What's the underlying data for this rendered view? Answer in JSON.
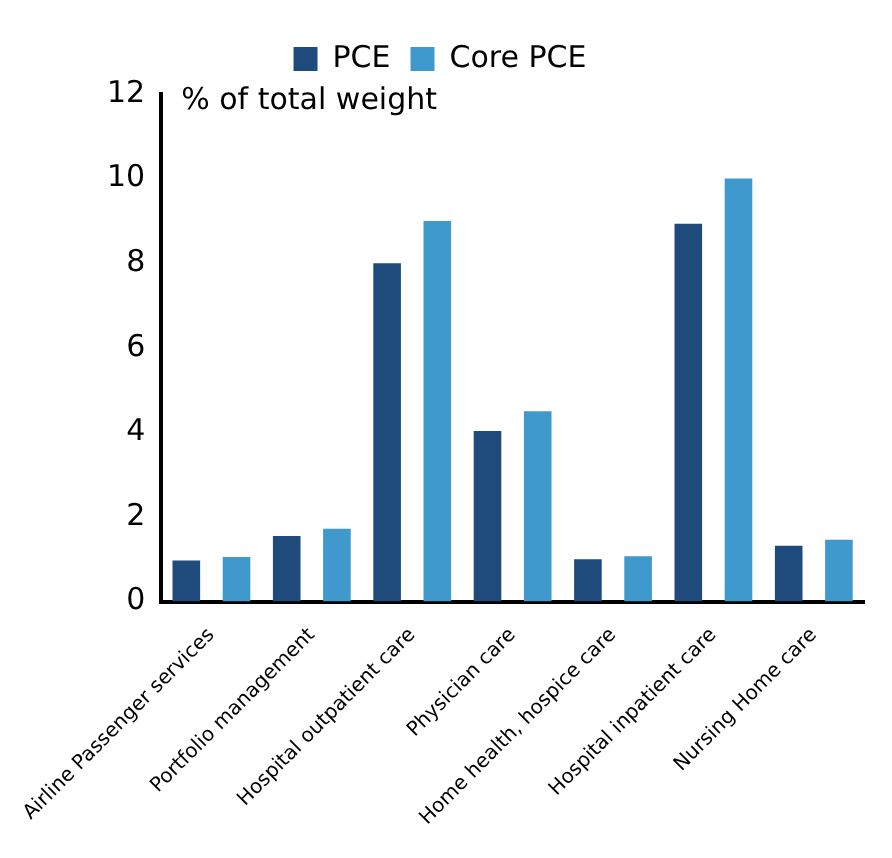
{
  "chart_data": {
    "type": "bar",
    "ylabel": "% of total weight",
    "categories": [
      "Airline Passenger services",
      "Portfolio management",
      "Hospital outpatient care",
      "Physician care",
      "Home health, hospice care",
      "Hospital inpatient care",
      "Nursing Home care"
    ],
    "series": [
      {
        "name": "PCE",
        "color": "#1f4a7c",
        "values": [
          0.97,
          1.55,
          8.0,
          4.03,
          1.0,
          8.93,
          1.32
        ]
      },
      {
        "name": "Core PCE",
        "color": "#3f99cc",
        "values": [
          1.05,
          1.72,
          9.0,
          4.5,
          1.07,
          10.0,
          1.46
        ]
      }
    ],
    "ylim": [
      0,
      12
    ],
    "yticks": [
      0,
      2,
      4,
      6,
      8,
      10,
      12
    ],
    "grid": false,
    "legend": "top"
  }
}
